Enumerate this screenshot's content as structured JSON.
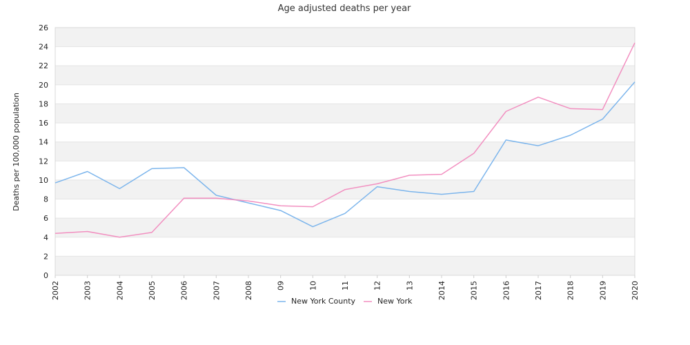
{
  "chart_data": {
    "type": "line",
    "title": "Age adjusted deaths per year",
    "xlabel": "",
    "ylabel": "Deaths per 100,000 population",
    "categories": [
      "2002",
      "2003",
      "2004",
      "2005",
      "2006",
      "2007",
      "2008",
      "09",
      "10",
      "11",
      "12",
      "13",
      "2014",
      "2015",
      "2016",
      "2017",
      "2018",
      "2019",
      "2020"
    ],
    "ylim": [
      0,
      26
    ],
    "yticks": [
      0,
      2,
      4,
      6,
      8,
      10,
      12,
      14,
      16,
      18,
      20,
      22,
      24,
      26
    ],
    "grid": "alternating horizontal bands",
    "legend_position": "bottom-center",
    "series": [
      {
        "name": "New York County",
        "color": "#7cb5ec",
        "values": [
          9.7,
          10.9,
          9.1,
          11.2,
          11.3,
          8.4,
          7.6,
          6.8,
          5.1,
          6.5,
          9.3,
          8.8,
          8.5,
          8.8,
          14.2,
          13.6,
          14.7,
          16.4,
          20.3
        ]
      },
      {
        "name": "New York",
        "color": "#f28fc0",
        "values": [
          4.4,
          4.6,
          4.0,
          4.5,
          8.1,
          8.1,
          7.8,
          7.3,
          7.2,
          9.0,
          9.6,
          10.5,
          10.6,
          12.8,
          17.2,
          18.7,
          17.5,
          17.4,
          24.4
        ]
      }
    ]
  }
}
